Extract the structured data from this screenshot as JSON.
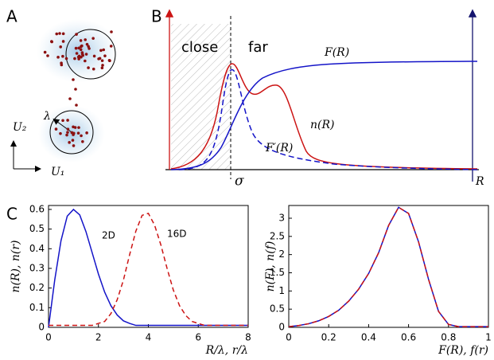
{
  "panel_a": {
    "label": "A",
    "lambda": "λ",
    "u2": "U₂",
    "u1": "U₁"
  },
  "panel_b": {
    "label": "B",
    "close": "close",
    "far": "far",
    "f": "F(R)",
    "n": "n(R)",
    "fprime": "F′(R)",
    "sigma": "σ",
    "r": "R"
  },
  "panel_c": {
    "label": "C"
  },
  "chart_data": [
    {
      "type": "line",
      "x_label": "R/λ, r/λ",
      "y_label": "n(R), n(r)",
      "x": [
        0,
        0.25,
        0.5,
        0.75,
        1,
        1.25,
        1.5,
        1.75,
        2,
        2.25,
        2.5,
        2.75,
        3,
        3.25,
        3.5,
        3.75,
        4,
        4.25,
        4.5,
        4.75,
        5,
        5.25,
        5.5,
        5.75,
        6,
        6.25,
        6.5,
        7,
        7.5,
        8
      ],
      "series": [
        {
          "name": "2D",
          "color": "#1414c8",
          "line_style": "solid",
          "values": [
            0,
            0.242,
            0.441,
            0.566,
            0.6,
            0.572,
            0.487,
            0.379,
            0.271,
            0.179,
            0.11,
            0.063,
            0.033,
            0.02,
            0.01,
            0.01,
            0.01,
            0.01,
            0.01,
            0.01,
            0.01,
            0.01,
            0.01,
            0.01,
            0.01,
            0.01,
            0.01,
            0.01,
            0.01,
            0.01
          ]
        },
        {
          "name": "16D",
          "color": "#cc1414",
          "line_style": "dashed",
          "values": [
            0.01,
            0.01,
            0.01,
            0.01,
            0.01,
            0.01,
            0.01,
            0.01,
            0.02,
            0.03,
            0.07,
            0.14,
            0.24,
            0.37,
            0.49,
            0.57,
            0.58,
            0.52,
            0.42,
            0.3,
            0.19,
            0.11,
            0.06,
            0.03,
            0.02,
            0.01,
            0.01,
            0.01,
            0.01,
            0.01
          ]
        }
      ],
      "xlim": [
        0,
        8
      ],
      "xticks": [
        0,
        2,
        4,
        6,
        8
      ],
      "ylim": [
        0,
        0.62
      ],
      "yticks": [
        0,
        0.1,
        0.2,
        0.3,
        0.4,
        0.5,
        0.6
      ]
    },
    {
      "type": "line",
      "x_label": "F(R), f(r)",
      "y_label": "n(F), n(f)",
      "x": [
        0,
        0.05,
        0.1,
        0.15,
        0.2,
        0.25,
        0.3,
        0.35,
        0.4,
        0.45,
        0.5,
        0.55,
        0.6,
        0.65,
        0.7,
        0.75,
        0.8,
        0.85,
        0.9,
        0.95,
        1
      ],
      "series": [
        {
          "color": "#1414c8",
          "line_style": "solid",
          "values": [
            0.02,
            0.05,
            0.1,
            0.18,
            0.3,
            0.47,
            0.72,
            1.05,
            1.48,
            2.05,
            2.8,
            3.3,
            3.13,
            2.35,
            1.32,
            0.44,
            0.08,
            0.02,
            0.02,
            0.02,
            0.02
          ]
        },
        {
          "color": "#cc1414",
          "line_style": "dashed",
          "values": [
            0.02,
            0.05,
            0.1,
            0.18,
            0.3,
            0.47,
            0.72,
            1.05,
            1.48,
            2.05,
            2.8,
            3.3,
            3.13,
            2.35,
            1.32,
            0.44,
            0.08,
            0.02,
            0.02,
            0.02,
            0.02
          ]
        }
      ],
      "xlim": [
        0,
        1
      ],
      "xticks": [
        0,
        0.2,
        0.4,
        0.6,
        0.8,
        1
      ],
      "ylim": [
        0,
        3.35
      ],
      "yticks": [
        0,
        0.5,
        1,
        1.5,
        2,
        2.5,
        3
      ]
    }
  ]
}
